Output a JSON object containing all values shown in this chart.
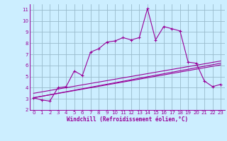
{
  "xlabel": "Windchill (Refroidissement éolien,°C)",
  "bg_color": "#cceeff",
  "line_color": "#990099",
  "grid_color": "#99bbcc",
  "xlim": [
    -0.5,
    23.5
  ],
  "ylim": [
    2,
    11.5
  ],
  "xticks": [
    0,
    1,
    2,
    3,
    4,
    5,
    6,
    7,
    8,
    9,
    10,
    11,
    12,
    13,
    14,
    15,
    16,
    17,
    18,
    19,
    20,
    21,
    22,
    23
  ],
  "yticks": [
    2,
    3,
    4,
    5,
    6,
    7,
    8,
    9,
    10,
    11
  ],
  "main_x": [
    0,
    1,
    2,
    3,
    4,
    5,
    6,
    7,
    8,
    9,
    10,
    11,
    12,
    13,
    14,
    15,
    16,
    17,
    18,
    19,
    20,
    21,
    22,
    23
  ],
  "main_y": [
    3.1,
    2.9,
    2.8,
    4.0,
    4.1,
    5.5,
    5.1,
    7.2,
    7.5,
    8.1,
    8.2,
    8.5,
    8.3,
    8.5,
    11.1,
    8.3,
    9.5,
    9.3,
    9.1,
    6.3,
    6.2,
    4.6,
    4.1,
    4.3
  ],
  "line1_x": [
    0,
    23
  ],
  "line1_y": [
    3.1,
    6.2
  ],
  "line2_x": [
    0,
    23
  ],
  "line2_y": [
    3.1,
    6.05
  ],
  "line3_x": [
    0,
    23
  ],
  "line3_y": [
    3.5,
    6.4
  ]
}
